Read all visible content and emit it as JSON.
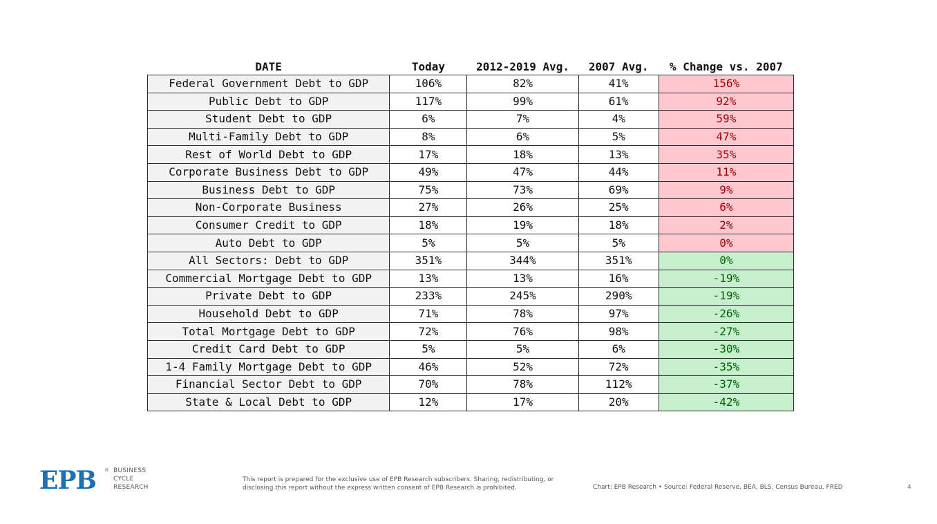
{
  "table": {
    "headers": [
      "DATE",
      "Today",
      "2012-2019 Avg.",
      "2007 Avg.",
      "% Change vs. 2007"
    ],
    "rows": [
      {
        "label": "Federal Government Debt to GDP",
        "today": "106%",
        "avg1219": "82%",
        "avg07": "41%",
        "change": "156%",
        "sign": "pos"
      },
      {
        "label": "Public Debt to GDP",
        "today": "117%",
        "avg1219": "99%",
        "avg07": "61%",
        "change": "92%",
        "sign": "pos"
      },
      {
        "label": "Student Debt to GDP",
        "today": "6%",
        "avg1219": "7%",
        "avg07": "4%",
        "change": "59%",
        "sign": "pos"
      },
      {
        "label": "Multi-Family Debt to GDP",
        "today": "8%",
        "avg1219": "6%",
        "avg07": "5%",
        "change": "47%",
        "sign": "pos"
      },
      {
        "label": "Rest of World Debt to GDP",
        "today": "17%",
        "avg1219": "18%",
        "avg07": "13%",
        "change": "35%",
        "sign": "pos"
      },
      {
        "label": "Corporate Business Debt to GDP",
        "today": "49%",
        "avg1219": "47%",
        "avg07": "44%",
        "change": "11%",
        "sign": "pos"
      },
      {
        "label": "Business Debt to GDP",
        "today": "75%",
        "avg1219": "73%",
        "avg07": "69%",
        "change": "9%",
        "sign": "pos"
      },
      {
        "label": "Non-Corporate Business",
        "today": "27%",
        "avg1219": "26%",
        "avg07": "25%",
        "change": "6%",
        "sign": "pos"
      },
      {
        "label": "Consumer Credit to GDP",
        "today": "18%",
        "avg1219": "19%",
        "avg07": "18%",
        "change": "2%",
        "sign": "pos"
      },
      {
        "label": "Auto Debt to GDP",
        "today": "5%",
        "avg1219": "5%",
        "avg07": "5%",
        "change": "0%",
        "sign": "pos"
      },
      {
        "label": "All Sectors: Debt to GDP",
        "today": "351%",
        "avg1219": "344%",
        "avg07": "351%",
        "change": "0%",
        "sign": "neg"
      },
      {
        "label": "Commercial Mortgage Debt to GDP",
        "today": "13%",
        "avg1219": "13%",
        "avg07": "16%",
        "change": "-19%",
        "sign": "neg"
      },
      {
        "label": "Private Debt to GDP",
        "today": "233%",
        "avg1219": "245%",
        "avg07": "290%",
        "change": "-19%",
        "sign": "neg"
      },
      {
        "label": "Household Debt to GDP",
        "today": "71%",
        "avg1219": "78%",
        "avg07": "97%",
        "change": "-26%",
        "sign": "neg"
      },
      {
        "label": "Total Mortgage Debt to GDP",
        "today": "72%",
        "avg1219": "76%",
        "avg07": "98%",
        "change": "-27%",
        "sign": "neg"
      },
      {
        "label": "Credit Card Debt to GDP",
        "today": "5%",
        "avg1219": "5%",
        "avg07": "6%",
        "change": "-30%",
        "sign": "neg"
      },
      {
        "label": "1-4 Family Mortgage Debt to GDP",
        "today": "46%",
        "avg1219": "52%",
        "avg07": "72%",
        "change": "-35%",
        "sign": "neg"
      },
      {
        "label": "Financial Sector Debt to GDP",
        "today": "70%",
        "avg1219": "78%",
        "avg07": "112%",
        "change": "-37%",
        "sign": "neg"
      },
      {
        "label": "State & Local Debt to GDP",
        "today": "12%",
        "avg1219": "17%",
        "avg07": "20%",
        "change": "-42%",
        "sign": "neg"
      }
    ]
  },
  "colors": {
    "positive_bg": "#ffc7ce",
    "positive_text": "#9c0006",
    "negative_bg": "#c6efce",
    "negative_text": "#006100",
    "brand": "#1f6fb4"
  },
  "footer": {
    "logo": "EPB",
    "logo_reg": "®",
    "logo_text": [
      "BUSINESS",
      "CYCLE",
      "RESEARCH"
    ],
    "disclaimer_line1": "This report is prepared for the exclusive use of EPB Research subscribers. Sharing, redistributing, or",
    "disclaimer_line2": "disclosing this report without the express written consent of EPB Research is prohibited.",
    "credit": "Chart: EPB Research  •  Source: Federal Reserve, BEA, BLS, Census Bureau, FRED",
    "page_number": "4"
  }
}
